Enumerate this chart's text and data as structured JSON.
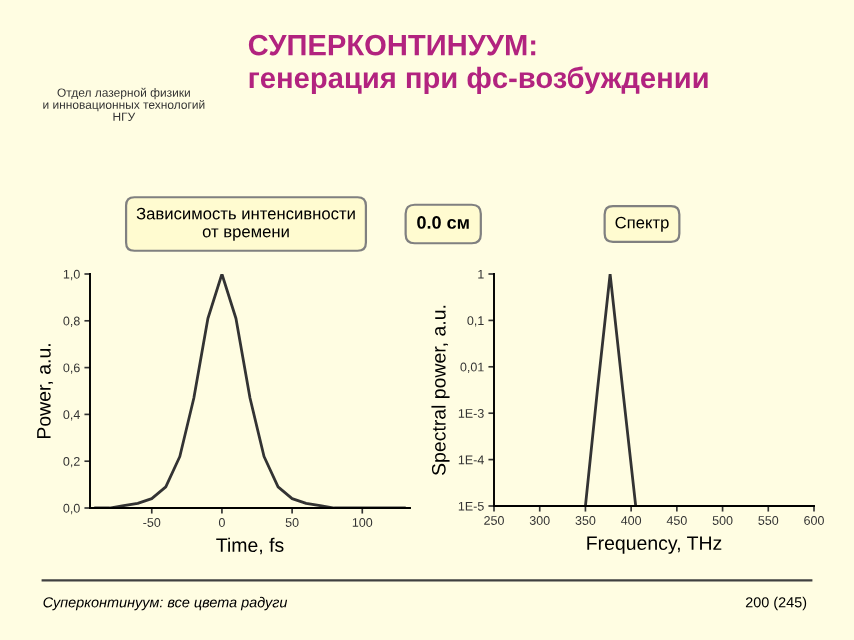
{
  "chart_data": [
    {
      "type": "line",
      "title": "Зависимость интенсивности\nот времени",
      "xlabel": "Time, fs",
      "ylabel": "Power, a.u.",
      "x": [
        -90,
        -80,
        -70,
        -60,
        -50,
        -40,
        -30,
        -20,
        -10,
        0,
        10,
        20,
        30,
        40,
        50,
        60,
        70,
        80,
        90,
        100,
        110,
        120,
        130
      ],
      "series": [
        {
          "color": "#333333",
          "values": [
            0.0,
            0.0,
            0.01,
            0.02,
            0.04,
            0.09,
            0.22,
            0.47,
            0.81,
            1.0,
            0.81,
            0.47,
            0.22,
            0.09,
            0.04,
            0.02,
            0.01,
            0.0,
            0.0,
            0.0,
            0.0,
            0.0,
            0.0
          ]
        }
      ],
      "xlim": [
        -94,
        134
      ],
      "xticks": [
        -50,
        0,
        50,
        100
      ],
      "ylim": [
        0,
        1.0
      ],
      "yticks": [
        {
          "value": 0,
          "label": "0,0"
        },
        {
          "value": 0.2,
          "label": "0,2"
        },
        {
          "value": 0.4,
          "label": "0,4"
        },
        {
          "value": 0.6,
          "label": "0,6"
        },
        {
          "value": 0.8,
          "label": "0,8"
        },
        {
          "value": 1.0,
          "label": "1,0"
        }
      ],
      "grid": false,
      "legend": false,
      "annotations": [
        "СУПЕРКОНТИНУУМ:\nгенерация при фс-возбуждении",
        "Отдел лазерной физики\nи инновационных технологий\nНГУ",
        "0.0 см",
        "Суперконтинуум: все цвета радуги",
        "200 (245)"
      ]
    },
    {
      "type": "line",
      "title": "Спектр",
      "xlabel": "Frequency, THz",
      "ylabel": "Spectral power, a.u.",
      "log": "y",
      "x": [
        350,
        363,
        377,
        391,
        405
      ],
      "series": [
        {
          "color": "#333333",
          "values": [
            1e-05,
            0.003,
            1,
            0.003,
            1e-05
          ]
        }
      ],
      "xlim": [
        250,
        600
      ],
      "xticks": [
        250,
        300,
        350,
        400,
        450,
        500,
        550,
        600
      ],
      "ylim": [
        1e-05,
        1
      ],
      "yticks": [
        {
          "value": 1e-05,
          "label": "1E-5"
        },
        {
          "value": 0.0001,
          "label": "1E-4"
        },
        {
          "value": 0.001,
          "label": "1E-3"
        },
        {
          "value": 0.01,
          "label": "0,01"
        },
        {
          "value": 0.1,
          "label": "0,1"
        },
        {
          "value": 1,
          "label": "1"
        }
      ],
      "grid": false,
      "legend": false
    }
  ]
}
